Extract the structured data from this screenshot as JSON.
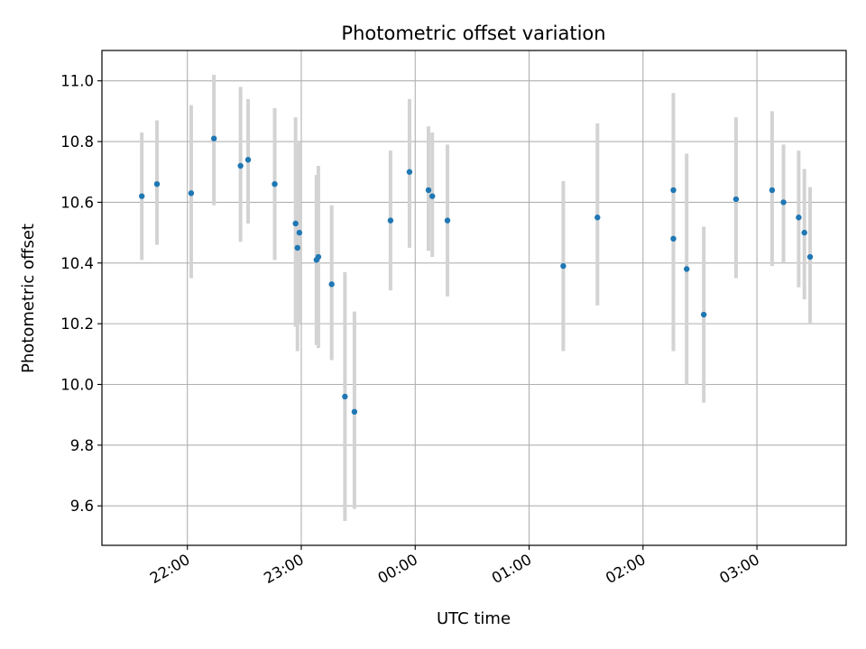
{
  "chart_data": {
    "type": "scatter",
    "title": "Photometric offset variation",
    "xlabel": "UTC time",
    "ylabel": "Photometric offset",
    "x_is_time": true,
    "xlim": [
      "21:15",
      "03:47"
    ],
    "ylim": [
      9.47,
      11.1
    ],
    "yticks": [
      9.6,
      9.8,
      10.0,
      10.2,
      10.4,
      10.6,
      10.8,
      11.0
    ],
    "ytick_labels": [
      "9.6",
      "9.8",
      "10.0",
      "10.2",
      "10.4",
      "10.6",
      "10.8",
      "11.0"
    ],
    "xticks": [
      "22:00",
      "23:00",
      "00:00",
      "01:00",
      "02:00",
      "03:00"
    ],
    "grid": true,
    "legend": "none",
    "colors": {
      "point": "#1f77b4",
      "errorbar": "#d3d3d3",
      "grid": "#b0b0b0"
    },
    "points": [
      {
        "x": "21:36",
        "y": 10.62,
        "lo": 10.41,
        "hi": 10.83
      },
      {
        "x": "21:44",
        "y": 10.66,
        "lo": 10.46,
        "hi": 10.87
      },
      {
        "x": "22:02",
        "y": 10.63,
        "lo": 10.35,
        "hi": 10.92
      },
      {
        "x": "22:14",
        "y": 10.81,
        "lo": 10.59,
        "hi": 11.02
      },
      {
        "x": "22:28",
        "y": 10.72,
        "lo": 10.47,
        "hi": 10.98
      },
      {
        "x": "22:32",
        "y": 10.74,
        "lo": 10.53,
        "hi": 10.94
      },
      {
        "x": "22:46",
        "y": 10.66,
        "lo": 10.41,
        "hi": 10.91
      },
      {
        "x": "22:57",
        "y": 10.53,
        "lo": 10.19,
        "hi": 10.88
      },
      {
        "x": "22:58",
        "y": 10.45,
        "lo": 10.11,
        "hi": 10.79
      },
      {
        "x": "22:59",
        "y": 10.5,
        "lo": 10.2,
        "hi": 10.8
      },
      {
        "x": "23:08",
        "y": 10.41,
        "lo": 10.13,
        "hi": 10.69
      },
      {
        "x": "23:09",
        "y": 10.42,
        "lo": 10.12,
        "hi": 10.72
      },
      {
        "x": "23:16",
        "y": 10.33,
        "lo": 10.08,
        "hi": 10.59
      },
      {
        "x": "23:23",
        "y": 9.96,
        "lo": 9.55,
        "hi": 10.37
      },
      {
        "x": "23:28",
        "y": 9.91,
        "lo": 9.59,
        "hi": 10.24
      },
      {
        "x": "23:47",
        "y": 10.54,
        "lo": 10.31,
        "hi": 10.77
      },
      {
        "x": "23:57",
        "y": 10.7,
        "lo": 10.45,
        "hi": 10.94
      },
      {
        "x": "00:07",
        "y": 10.64,
        "lo": 10.44,
        "hi": 10.85
      },
      {
        "x": "00:09",
        "y": 10.62,
        "lo": 10.42,
        "hi": 10.83
      },
      {
        "x": "00:17",
        "y": 10.54,
        "lo": 10.29,
        "hi": 10.79
      },
      {
        "x": "01:18",
        "y": 10.39,
        "lo": 10.11,
        "hi": 10.67
      },
      {
        "x": "01:36",
        "y": 10.55,
        "lo": 10.26,
        "hi": 10.86
      },
      {
        "x": "02:16",
        "y": 10.48,
        "lo": 10.11,
        "hi": 10.86
      },
      {
        "x": "02:16",
        "y": 10.64,
        "lo": 10.31,
        "hi": 10.96
      },
      {
        "x": "02:23",
        "y": 10.38,
        "lo": 10.0,
        "hi": 10.76
      },
      {
        "x": "02:32",
        "y": 10.23,
        "lo": 9.94,
        "hi": 10.52
      },
      {
        "x": "02:49",
        "y": 10.61,
        "lo": 10.35,
        "hi": 10.88
      },
      {
        "x": "03:08",
        "y": 10.64,
        "lo": 10.39,
        "hi": 10.9
      },
      {
        "x": "03:14",
        "y": 10.6,
        "lo": 10.4,
        "hi": 10.79
      },
      {
        "x": "03:22",
        "y": 10.55,
        "lo": 10.32,
        "hi": 10.77
      },
      {
        "x": "03:25",
        "y": 10.5,
        "lo": 10.28,
        "hi": 10.71
      },
      {
        "x": "03:28",
        "y": 10.42,
        "lo": 10.2,
        "hi": 10.65
      }
    ]
  }
}
